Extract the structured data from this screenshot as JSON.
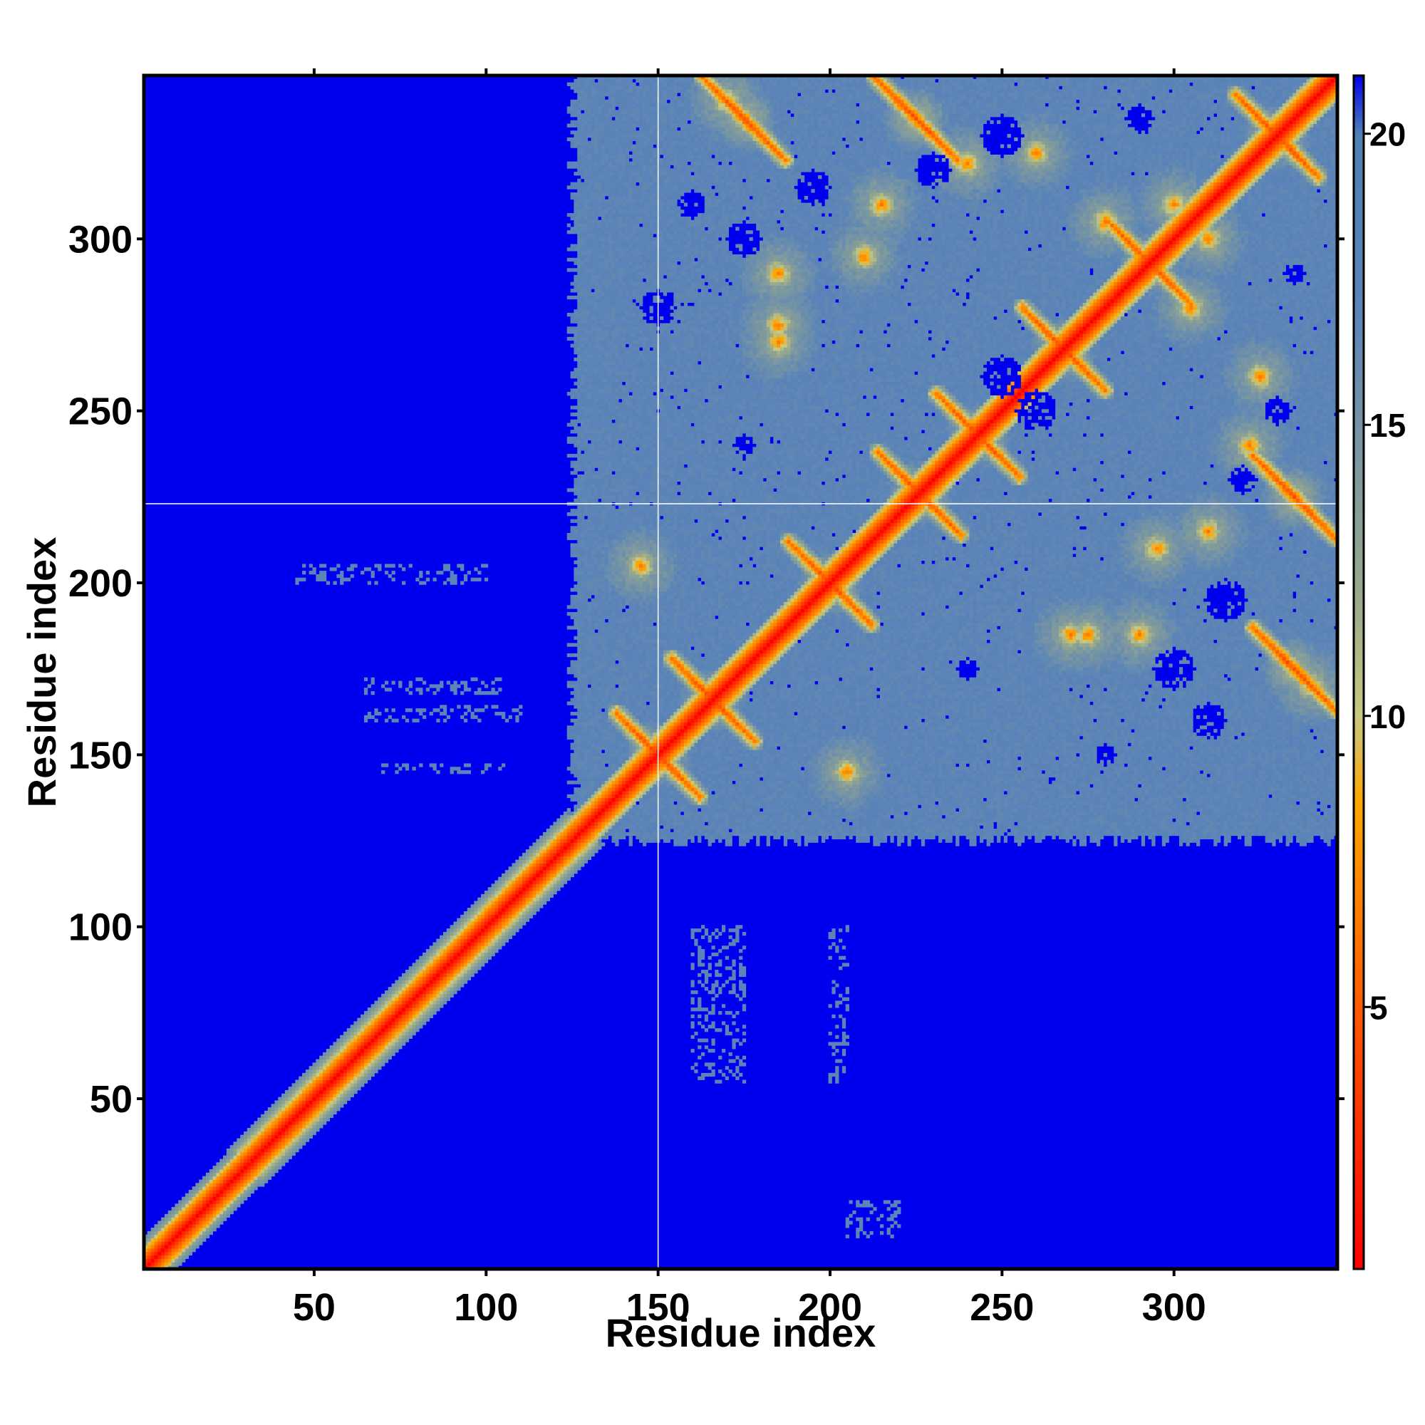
{
  "chart_data": {
    "type": "heatmap",
    "title": "",
    "xlabel": "Residue index",
    "ylabel": "Residue index",
    "xlim": [
      1,
      347
    ],
    "ylim": [
      1,
      347
    ],
    "x_ticks": [
      50,
      100,
      150,
      200,
      250,
      300
    ],
    "y_ticks": [
      50,
      100,
      150,
      200,
      250,
      300
    ],
    "grid": false,
    "reference_lines": {
      "x": 150,
      "y": 223,
      "color": "#ffffff"
    },
    "colorbar": {
      "position": "right",
      "range": [
        0.5,
        21
      ],
      "ticks": [
        5,
        10,
        15,
        20
      ],
      "stops": [
        {
          "value": 0.5,
          "color": "#ff0000"
        },
        {
          "value": 4,
          "color": "#ff4500"
        },
        {
          "value": 8.5,
          "color": "#ffa500"
        },
        {
          "value": 10,
          "color": "#c8c880"
        },
        {
          "value": 12,
          "color": "#9aaa8a"
        },
        {
          "value": 17,
          "color": "#5b84b8"
        },
        {
          "value": 20,
          "color": "#5080b4"
        },
        {
          "value": 21,
          "color": "#0000ee"
        }
      ]
    },
    "regions": {
      "background_value": 21,
      "diagonal_band": {
        "from_residue": 1,
        "to_residue": 125,
        "halfwidth_residues": 6
      },
      "structured_domain": {
        "from_residue": 125,
        "to_residue": 347,
        "base_value": 17
      },
      "hairpin_contacts": [
        {
          "center": [
            150,
            150
          ]
        },
        {
          "center": [
            166,
            166
          ]
        },
        {
          "center": [
            200,
            200
          ]
        },
        {
          "center": [
            226,
            226
          ]
        },
        {
          "center": [
            243,
            243
          ]
        },
        {
          "center": [
            268,
            268
          ]
        },
        {
          "center": [
            293,
            293
          ]
        },
        {
          "center": [
            330,
            330
          ]
        },
        {
          "center": [
            335,
            225
          ]
        },
        {
          "center": [
            225,
            335
          ]
        },
        {
          "center": [
            335,
            175
          ]
        },
        {
          "center": [
            175,
            335
          ]
        }
      ],
      "contact_spots": [
        [
          185,
          290
        ],
        [
          290,
          185
        ],
        [
          185,
          270
        ],
        [
          270,
          185
        ],
        [
          240,
          322
        ],
        [
          322,
          240
        ],
        [
          210,
          295
        ],
        [
          295,
          210
        ],
        [
          305,
          280
        ],
        [
          280,
          305
        ],
        [
          205,
          145
        ],
        [
          145,
          205
        ],
        [
          275,
          185
        ],
        [
          185,
          275
        ],
        [
          170,
          340
        ],
        [
          340,
          170
        ],
        [
          215,
          310
        ],
        [
          310,
          215
        ],
        [
          325,
          260
        ],
        [
          260,
          325
        ],
        [
          300,
          310
        ],
        [
          310,
          300
        ]
      ],
      "distant_pockets": [
        [
          315,
          195
        ],
        [
          195,
          315
        ],
        [
          320,
          230
        ],
        [
          230,
          320
        ],
        [
          310,
          160
        ],
        [
          160,
          310
        ],
        [
          280,
          150
        ],
        [
          150,
          280
        ],
        [
          250,
          260
        ],
        [
          260,
          250
        ],
        [
          335,
          290
        ],
        [
          290,
          335
        ],
        [
          175,
          300
        ],
        [
          300,
          175
        ],
        [
          240,
          175
        ],
        [
          175,
          240
        ],
        [
          330,
          250
        ],
        [
          250,
          330
        ]
      ],
      "sparse_contacts": [
        {
          "row_range": [
            200,
            205
          ],
          "col_range": [
            45,
            100
          ]
        },
        {
          "row_range": [
            168,
            172
          ],
          "col_range": [
            65,
            105
          ]
        },
        {
          "row_range": [
            160,
            164
          ],
          "col_range": [
            65,
            110
          ]
        },
        {
          "row_range": [
            145,
            147
          ],
          "col_range": [
            70,
            105
          ]
        },
        {
          "row_range": [
            55,
            100
          ],
          "col_range": [
            200,
            205
          ]
        },
        {
          "row_range": [
            55,
            100
          ],
          "col_range": [
            160,
            175
          ]
        },
        {
          "row_range": [
            10,
            20
          ],
          "col_range": [
            205,
            220
          ]
        }
      ]
    }
  }
}
